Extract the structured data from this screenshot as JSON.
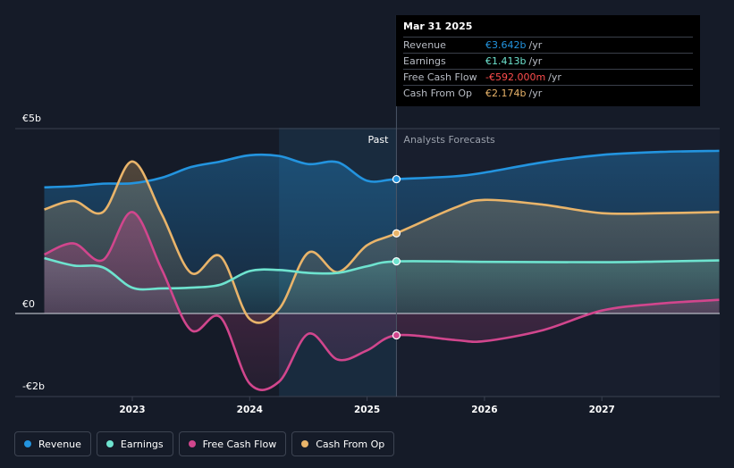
{
  "colors": {
    "revenue": "#2394df",
    "earnings": "#6ee3cf",
    "fcf": "#d1468d",
    "cfo": "#e9b46a",
    "background": "#151b28"
  },
  "tooltip": {
    "date": "Mar 31 2025",
    "rows": [
      {
        "name": "Revenue",
        "value": "€3.642b",
        "unit": "/yr",
        "color": "#2394df"
      },
      {
        "name": "Earnings",
        "value": "€1.413b",
        "unit": "/yr",
        "color": "#6ee3cf"
      },
      {
        "name": "Free Cash Flow",
        "value": "-€592.000m",
        "unit": "/yr",
        "color": "#ff4d4d"
      },
      {
        "name": "Cash From Op",
        "value": "€2.174b",
        "unit": "/yr",
        "color": "#e9b46a"
      }
    ]
  },
  "legend": [
    {
      "label": "Revenue",
      "color": "#2394df"
    },
    {
      "label": "Earnings",
      "color": "#6ee3cf"
    },
    {
      "label": "Free Cash Flow",
      "color": "#d1468d"
    },
    {
      "label": "Cash From Op",
      "color": "#e9b46a"
    }
  ],
  "chart_data": {
    "type": "line",
    "x_unit": "year",
    "xlim": [
      2022.0,
      2028.0
    ],
    "ylim": [
      -2.1,
      4.9
    ],
    "y_ticks": [
      {
        "value": 4.5,
        "label": "€5b"
      },
      {
        "value": 0,
        "label": "€0"
      },
      {
        "value": -1.8,
        "label": "-€2b"
      }
    ],
    "x_ticks": [
      {
        "value": 2023,
        "label": "2023"
      },
      {
        "value": 2024,
        "label": "2024"
      },
      {
        "value": 2025,
        "label": "2025"
      },
      {
        "value": 2026,
        "label": "2026"
      },
      {
        "value": 2027,
        "label": "2027"
      }
    ],
    "past_label": "Past",
    "forecast_label": "Analysts Forecasts",
    "divider_x": 2025.25,
    "highlight_range": [
      2024.25,
      2025.25
    ],
    "series": [
      {
        "name": "Revenue",
        "key": "revenue",
        "points": [
          [
            2022.25,
            3.42
          ],
          [
            2022.5,
            3.45
          ],
          [
            2022.75,
            3.52
          ],
          [
            2023.0,
            3.53
          ],
          [
            2023.25,
            3.68
          ],
          [
            2023.5,
            3.97
          ],
          [
            2023.75,
            4.12
          ],
          [
            2024.0,
            4.29
          ],
          [
            2024.25,
            4.27
          ],
          [
            2024.5,
            4.05
          ],
          [
            2024.75,
            4.1
          ],
          [
            2025.0,
            3.6
          ],
          [
            2025.25,
            3.642
          ],
          [
            2025.75,
            3.72
          ],
          [
            2026.0,
            3.82
          ],
          [
            2026.5,
            4.1
          ],
          [
            2027.0,
            4.3
          ],
          [
            2027.5,
            4.38
          ],
          [
            2028.0,
            4.41
          ]
        ]
      },
      {
        "name": "Earnings",
        "key": "earnings",
        "points": [
          [
            2022.25,
            1.5
          ],
          [
            2022.5,
            1.3
          ],
          [
            2022.75,
            1.25
          ],
          [
            2023.0,
            0.7
          ],
          [
            2023.25,
            0.68
          ],
          [
            2023.5,
            0.7
          ],
          [
            2023.75,
            0.78
          ],
          [
            2024.0,
            1.15
          ],
          [
            2024.25,
            1.18
          ],
          [
            2024.5,
            1.1
          ],
          [
            2024.75,
            1.1
          ],
          [
            2025.0,
            1.28
          ],
          [
            2025.25,
            1.413
          ],
          [
            2026.0,
            1.4
          ],
          [
            2027.0,
            1.39
          ],
          [
            2027.5,
            1.41
          ],
          [
            2028.0,
            1.44
          ]
        ]
      },
      {
        "name": "Free Cash Flow",
        "key": "fcf",
        "points": [
          [
            2022.25,
            1.6
          ],
          [
            2022.5,
            1.9
          ],
          [
            2022.75,
            1.45
          ],
          [
            2023.0,
            2.75
          ],
          [
            2023.25,
            1.2
          ],
          [
            2023.5,
            -0.45
          ],
          [
            2023.75,
            -0.1
          ],
          [
            2024.0,
            -1.9
          ],
          [
            2024.25,
            -1.85
          ],
          [
            2024.5,
            -0.55
          ],
          [
            2024.75,
            -1.25
          ],
          [
            2025.0,
            -1.0
          ],
          [
            2025.25,
            -0.592
          ],
          [
            2025.75,
            -0.72
          ],
          [
            2026.0,
            -0.75
          ],
          [
            2026.5,
            -0.45
          ],
          [
            2027.0,
            0.08
          ],
          [
            2027.5,
            0.27
          ],
          [
            2028.0,
            0.37
          ]
        ]
      },
      {
        "name": "Cash From Op",
        "key": "cfo",
        "points": [
          [
            2022.25,
            2.82
          ],
          [
            2022.5,
            3.05
          ],
          [
            2022.75,
            2.75
          ],
          [
            2023.0,
            4.12
          ],
          [
            2023.25,
            2.7
          ],
          [
            2023.5,
            1.1
          ],
          [
            2023.75,
            1.55
          ],
          [
            2024.0,
            -0.15
          ],
          [
            2024.25,
            0.12
          ],
          [
            2024.5,
            1.65
          ],
          [
            2024.75,
            1.12
          ],
          [
            2025.0,
            1.85
          ],
          [
            2025.25,
            2.174
          ],
          [
            2025.75,
            2.87
          ],
          [
            2026.0,
            3.08
          ],
          [
            2026.5,
            2.95
          ],
          [
            2027.0,
            2.72
          ],
          [
            2027.5,
            2.72
          ],
          [
            2028.0,
            2.75
          ]
        ]
      }
    ]
  }
}
